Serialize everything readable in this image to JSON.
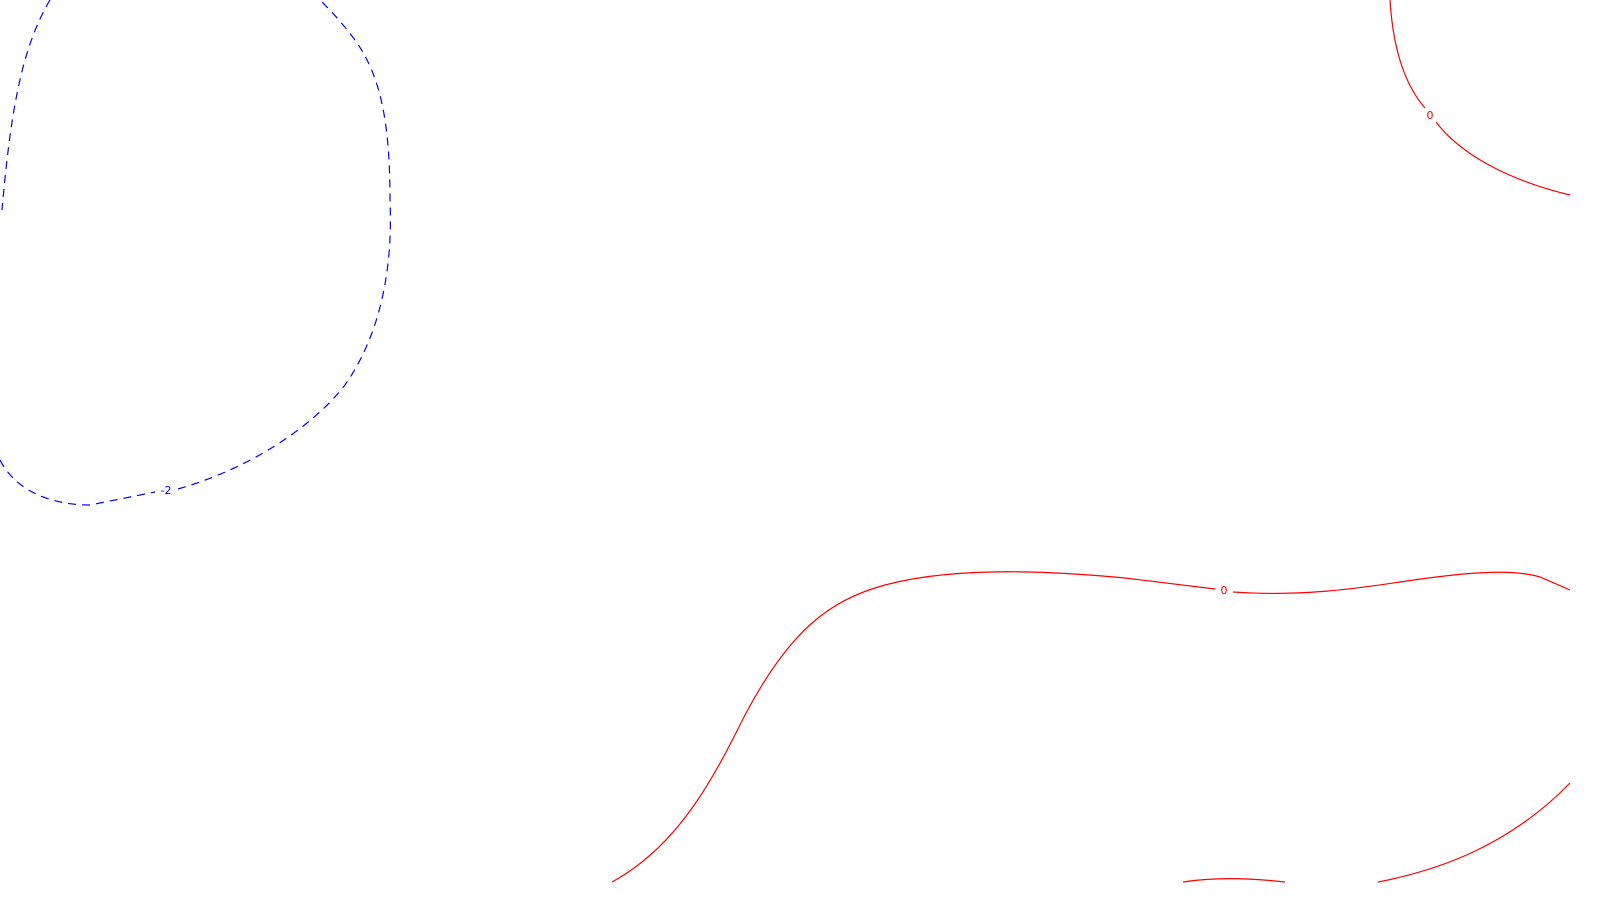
{
  "map": {
    "background_color": "#ffffff",
    "contours": [
      {
        "id": "negative-2",
        "level": -2,
        "label": "-2",
        "color": "#0000ff",
        "line_style": "dashed"
      },
      {
        "id": "zero-top-right",
        "level": 0,
        "label": "0",
        "color": "#ff0000",
        "line_style": "solid"
      },
      {
        "id": "zero-bottom",
        "level": 0,
        "label": "0",
        "color": "#ff0000",
        "line_style": "solid"
      },
      {
        "id": "zero-bottom-right",
        "level": 0,
        "label": "",
        "color": "#ff0000",
        "line_style": "solid"
      }
    ]
  }
}
